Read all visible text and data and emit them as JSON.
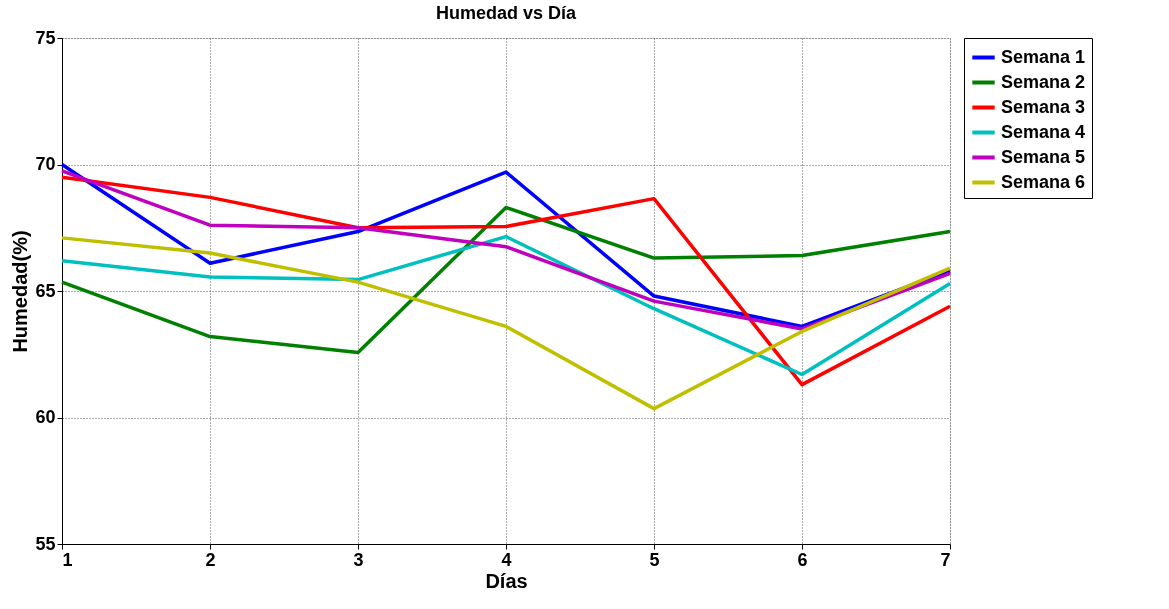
{
  "chart_data": {
    "type": "line",
    "title": "Humedad vs Día",
    "xlabel": "Días",
    "ylabel": "Humedad(%)",
    "x": [
      1,
      2,
      3,
      4,
      5,
      6,
      7
    ],
    "xlim": [
      1,
      7
    ],
    "xticks": [
      1,
      2,
      3,
      4,
      5,
      6,
      7
    ],
    "ylim": [
      55,
      75
    ],
    "yticks": [
      55,
      60,
      65,
      70,
      75
    ],
    "grid": true,
    "legend": "top right",
    "marker": "none",
    "line_style": "solid",
    "series": [
      {
        "name": "Semana 1",
        "color": "#0000ff",
        "values": [
          70.0,
          66.1,
          67.35,
          69.7,
          64.8,
          63.6,
          65.8
        ]
      },
      {
        "name": "Semana 2",
        "color": "#008000",
        "values": [
          65.35,
          63.2,
          62.57,
          68.3,
          66.3,
          66.4,
          67.35
        ]
      },
      {
        "name": "Semana 3",
        "color": "#ff0000",
        "values": [
          69.5,
          68.7,
          67.5,
          67.55,
          68.65,
          61.3,
          64.4
        ]
      },
      {
        "name": "Semana 4",
        "color": "#00bfbf",
        "values": [
          66.2,
          65.55,
          65.45,
          67.15,
          64.3,
          61.7,
          65.3
        ]
      },
      {
        "name": "Semana 5",
        "color": "#bf00bf",
        "values": [
          69.75,
          67.6,
          67.5,
          66.75,
          64.6,
          63.5,
          65.7
        ]
      },
      {
        "name": "Semana 6",
        "color": "#bfbf00",
        "values": [
          67.1,
          66.5,
          65.35,
          63.6,
          60.35,
          63.4,
          65.9
        ]
      }
    ]
  }
}
